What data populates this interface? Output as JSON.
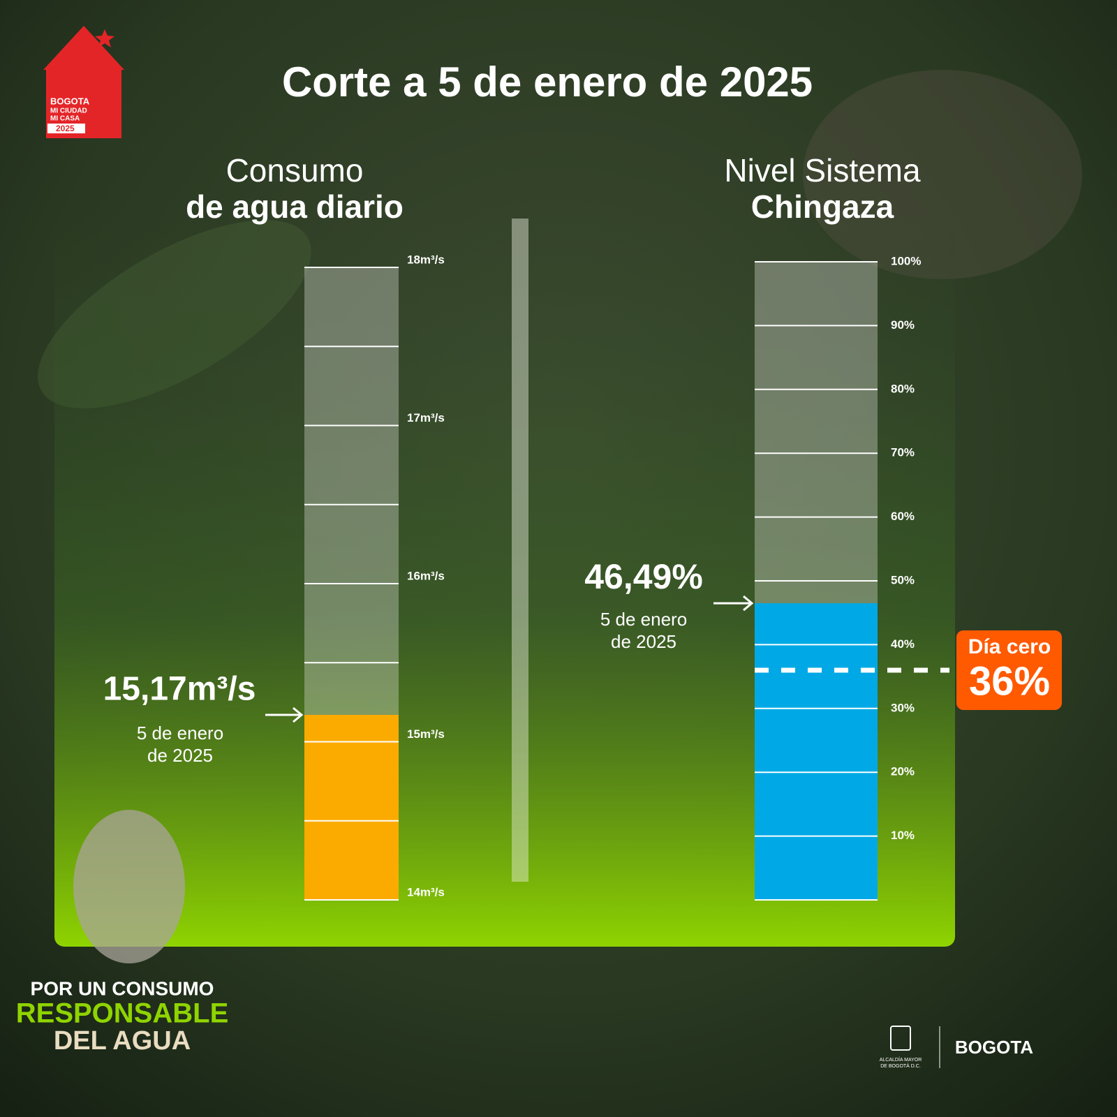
{
  "header": {
    "title": "Corte a 5 de enero de 2025"
  },
  "logo": {
    "lines": [
      "BOGOTA",
      "MI CIUDAD",
      "MI CASA",
      "2025"
    ]
  },
  "chart_data": [
    {
      "type": "bar",
      "title_lines": [
        "Consumo",
        "de agua diario"
      ],
      "values": [
        15.17
      ],
      "value_labels": [
        "15,17m³/s"
      ],
      "color": "#fbab00",
      "annotation_lines": [
        "5 de enero",
        "de 2025"
      ],
      "ylim": [
        14,
        18
      ],
      "yticks": [
        {
          "value": 14,
          "label": "14m³/s"
        },
        {
          "value": 15,
          "label": "15m³/s"
        },
        {
          "value": 16,
          "label": "16m³/s"
        },
        {
          "value": 17,
          "label": "17m³/s"
        },
        {
          "value": 18,
          "label": "18m³/s"
        }
      ],
      "minor_yticks": [
        14.5,
        15.5,
        16.5,
        17.5
      ],
      "grid": true
    },
    {
      "type": "bar",
      "title_lines": [
        "Nivel Sistema",
        "Chingaza"
      ],
      "values": [
        46.49
      ],
      "value_labels": [
        "46,49%"
      ],
      "color": "#00a9e6",
      "annotation_lines": [
        "5 de enero",
        "de 2025"
      ],
      "ylim": [
        0,
        100
      ],
      "yticks": [
        {
          "value": 10,
          "label": "10%"
        },
        {
          "value": 20,
          "label": "20%"
        },
        {
          "value": 30,
          "label": "30%"
        },
        {
          "value": 40,
          "label": "40%"
        },
        {
          "value": 50,
          "label": "50%"
        },
        {
          "value": 60,
          "label": "60%"
        },
        {
          "value": 70,
          "label": "70%"
        },
        {
          "value": 80,
          "label": "80%"
        },
        {
          "value": 90,
          "label": "90%"
        },
        {
          "value": 100,
          "label": "100%"
        }
      ],
      "minor_yticks": [
        0
      ],
      "grid": true,
      "threshold": {
        "label": "Día cero",
        "value": 36,
        "value_label": "36%",
        "color": "#ff5a00"
      }
    }
  ],
  "campaign": [
    "POR UN CONSUMO",
    "RESPONSABLE",
    "DEL AGUA"
  ],
  "footer": {
    "office": [
      "ALCALDÍA MAYOR",
      "DE BOGOTÁ D.C."
    ],
    "brand": "BOGOTA"
  }
}
